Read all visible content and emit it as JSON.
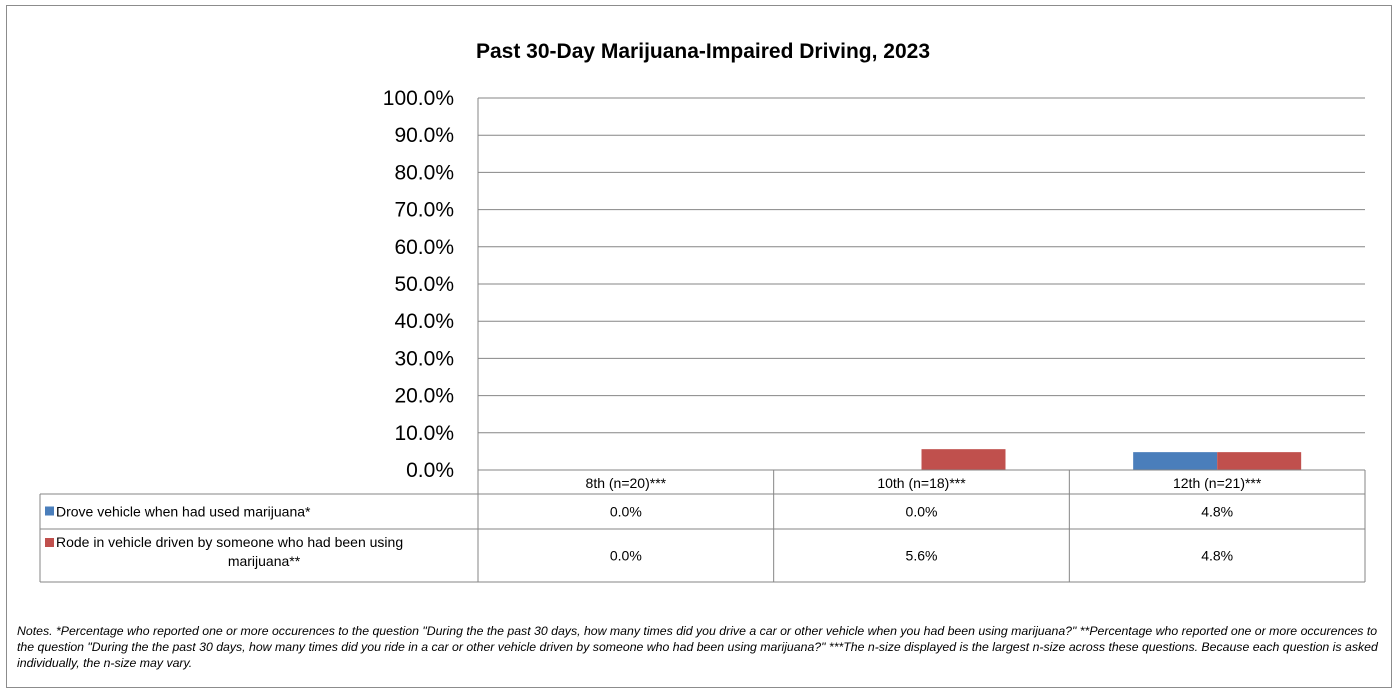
{
  "chart_data": {
    "type": "bar",
    "title": "Past 30-Day Marijuana-Impaired Driving, 2023",
    "categories": [
      "8th (n=20)***",
      "10th (n=18)***",
      "12th (n=21)***"
    ],
    "series": [
      {
        "name": "Drove vehicle when had used marijuana*",
        "color": "#4a7ebb",
        "values": [
          0.0,
          0.0,
          4.8
        ],
        "labels": [
          "0.0%",
          "0.0%",
          "4.8%"
        ]
      },
      {
        "name": "Rode in vehicle driven by someone who had been using marijuana**",
        "color": "#c0504d",
        "values": [
          0.0,
          5.6,
          4.8
        ],
        "labels": [
          "0.0%",
          "5.6%",
          "4.8%"
        ]
      }
    ],
    "ylim": [
      0,
      100
    ],
    "yticks": [
      "0.0%",
      "10.0%",
      "20.0%",
      "30.0%",
      "40.0%",
      "50.0%",
      "60.0%",
      "70.0%",
      "80.0%",
      "90.0%",
      "100.0%"
    ],
    "grid": true,
    "legend": "data-table"
  },
  "notes": "Notes. *Percentage who reported one or more occurences to the question \"During the the past 30 days, how many times did you drive a car or other vehicle when you had been using marijuana?\" **Percentage who reported one or more occurences to the question \"During the the past 30 days, how many times did you ride in a car or other vehicle driven by someone who had been using marijuana?\"  ***The n-size displayed is the largest n-size across these questions. Because each question is asked individually, the n-size may vary."
}
